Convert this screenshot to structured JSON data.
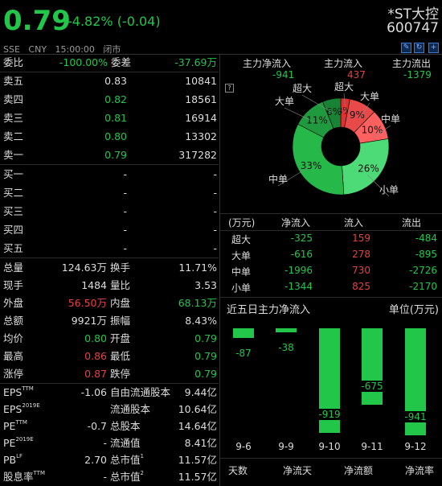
{
  "quote": {
    "price": "0.79",
    "change": "-4.82% (-0.04)",
    "name": "*ST大控",
    "code": "600747",
    "meta": "SSE   CNY   15:00:00   闭市"
  },
  "ratio": {
    "label1": "委比",
    "val1": "-100.00%",
    "label2": "委差",
    "val2": "-37.69万"
  },
  "asks": [
    {
      "label": "卖五",
      "price": "0.83",
      "vol": "10841",
      "pc": "w"
    },
    {
      "label": "卖四",
      "price": "0.82",
      "vol": "18561",
      "pc": "g"
    },
    {
      "label": "卖三",
      "price": "0.81",
      "vol": "16914",
      "pc": "g"
    },
    {
      "label": "卖二",
      "price": "0.80",
      "vol": "13302",
      "pc": "g"
    },
    {
      "label": "卖一",
      "price": "0.79",
      "vol": "317282",
      "pc": "g"
    }
  ],
  "bids": [
    {
      "label": "买一",
      "price": "-",
      "vol": "-"
    },
    {
      "label": "买二",
      "price": "-",
      "vol": "-"
    },
    {
      "label": "买三",
      "price": "-",
      "vol": "-"
    },
    {
      "label": "买四",
      "price": "-",
      "vol": "-"
    },
    {
      "label": "买五",
      "price": "-",
      "vol": "-"
    }
  ],
  "stats": [
    {
      "l1": "总量",
      "v1": "124.63万",
      "c1": "w",
      "l2": "换手",
      "v2": "11.71%",
      "c2": "w"
    },
    {
      "l1": "现手",
      "v1": "1484",
      "c1": "w",
      "l2": "量比",
      "v2": "3.53",
      "c2": "w"
    },
    {
      "l1": "外盘",
      "v1": "56.50万",
      "c1": "r",
      "l2": "内盘",
      "v2": "68.13万",
      "c2": "g"
    },
    {
      "l1": "总额",
      "v1": "9921万",
      "c1": "w",
      "l2": "振幅",
      "v2": "8.43%",
      "c2": "w"
    },
    {
      "l1": "均价",
      "v1": "0.80",
      "c1": "g",
      "l2": "开盘",
      "v2": "0.79",
      "c2": "g"
    },
    {
      "l1": "最高",
      "v1": "0.86",
      "c1": "r",
      "l2": "最低",
      "v2": "0.79",
      "c2": "g"
    },
    {
      "l1": "涨停",
      "v1": "0.87",
      "c1": "r",
      "l2": "跌停",
      "v2": "0.79",
      "c2": "g"
    }
  ],
  "fund": [
    {
      "l1": "EPS",
      "s1": "TTM",
      "v1": "-1.06",
      "l2": "自由流通股本",
      "s2": "",
      "v2": "9.44亿"
    },
    {
      "l1": "EPS",
      "s1": "2019E",
      "v1": "",
      "l2": "流通股本",
      "s2": "",
      "v2": "10.64亿"
    },
    {
      "l1": "PE",
      "s1": "TTM",
      "v1": "-0.7",
      "l2": "总股本",
      "s2": "",
      "v2": "14.64亿"
    },
    {
      "l1": "PE",
      "s1": "2019E",
      "v1": "-",
      "l2": "流通值",
      "s2": "",
      "v2": "8.41亿"
    },
    {
      "l1": "PB",
      "s1": "LF",
      "v1": "2.70",
      "l2": "总市值",
      "s2": "1",
      "v2": "11.57亿"
    },
    {
      "l1": "股息率",
      "s1": "TTM",
      "v1": "-",
      "l2": "总市值",
      "s2": "2",
      "v2": "11.57亿"
    }
  ],
  "mainflow": {
    "h1": "主力净流入",
    "v1": "-941",
    "h2": "主力流入",
    "v2": "437",
    "h3": "主力流出",
    "v3": "-1379"
  },
  "pie": {
    "slices": [
      {
        "name": "超大",
        "pct": 3,
        "color": "#e03030",
        "label": "3%",
        "cat": "超大"
      },
      {
        "name": "大单",
        "pct": 9,
        "color": "#e84a4a",
        "label": "9%",
        "cat": "大单"
      },
      {
        "name": "中单",
        "pct": 10,
        "color": "#ff6060",
        "label": "10%",
        "cat": "中单"
      },
      {
        "name": "小单",
        "pct": 26,
        "color": "#4ddb78",
        "label": "26%",
        "cat": "小单"
      },
      {
        "name": "中单",
        "pct": 33,
        "color": "#27b84a",
        "label": "33%",
        "cat": "中单"
      },
      {
        "name": "大单",
        "pct": 11,
        "color": "#1f9a3f",
        "label": "11%",
        "cat": "大单"
      },
      {
        "name": "超大",
        "pct": 6,
        "color": "#188335",
        "label": "6%",
        "cat": "超大"
      }
    ]
  },
  "flowtable": {
    "headers": [
      "(万元)",
      "净流入",
      "流入",
      "流出"
    ],
    "rows": [
      {
        "label": "超大",
        "net": "-325",
        "in": "159",
        "out": "-484"
      },
      {
        "label": "大单",
        "net": "-616",
        "in": "278",
        "out": "-895"
      },
      {
        "label": "中单",
        "net": "-1996",
        "in": "730",
        "out": "-2726"
      },
      {
        "label": "小单",
        "net": "-1344",
        "in": "825",
        "out": "-2170"
      }
    ]
  },
  "five": {
    "title": "近五日主力净流入",
    "unit": "单位(万元)"
  },
  "chart_data": {
    "type": "bar",
    "title": "近五日主力净流入",
    "ylabel": "单位(万元)",
    "categories": [
      "9-6",
      "9-9",
      "9-10",
      "9-11",
      "9-12"
    ],
    "values": [
      -87,
      -38,
      -919,
      -675,
      -941
    ],
    "ylim": [
      -941,
      0
    ]
  },
  "bottom": {
    "h1": "天数",
    "h2": "净流天",
    "h3": "净流额",
    "h4": "净流率"
  },
  "colors": {
    "up": "#e84040",
    "down": "#22c74a",
    "bg": "#000000"
  }
}
